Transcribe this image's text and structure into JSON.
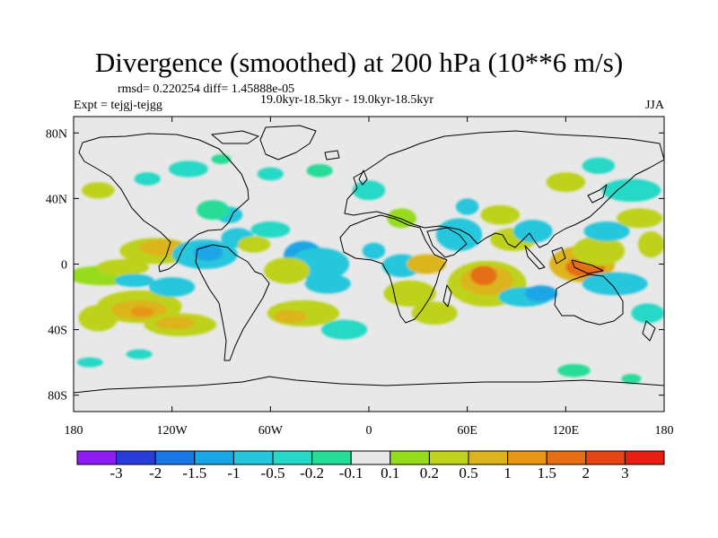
{
  "chart_data": {
    "type": "heatmap",
    "title": "Divergence (smoothed) at 200 hPa (10**6 m/s)",
    "stats": "rmsd= 0.220254  diff= 1.45888e-05",
    "experiment": "Expt = tejgj-tejgg",
    "period": "19.0kyr-18.5kyr - 19.0kyr-18.5kyr",
    "season": "JJA",
    "x_range": [
      -180,
      180
    ],
    "y_range": [
      -90,
      90
    ],
    "x_ticks": [
      {
        "value": -180,
        "label": "180"
      },
      {
        "value": -120,
        "label": "120W"
      },
      {
        "value": -60,
        "label": "60W"
      },
      {
        "value": 0,
        "label": "0"
      },
      {
        "value": 60,
        "label": "60E"
      },
      {
        "value": 120,
        "label": "120E"
      },
      {
        "value": 180,
        "label": "180"
      }
    ],
    "y_ticks": [
      {
        "value": 80,
        "label": "80N"
      },
      {
        "value": 40,
        "label": "40N"
      },
      {
        "value": 0,
        "label": "0"
      },
      {
        "value": -40,
        "label": "40S"
      },
      {
        "value": -80,
        "label": "80S"
      }
    ],
    "colorbar": {
      "colors": [
        "#8c1cf0",
        "#2a3cd8",
        "#1a78e6",
        "#1aa6e6",
        "#26c6dc",
        "#26d8c6",
        "#26dc96",
        "#e8e8e8",
        "#96dc1e",
        "#bed21e",
        "#dcb41e",
        "#e69614",
        "#e66e14",
        "#e64614",
        "#e61e14"
      ],
      "labels": [
        "-3",
        "-2",
        "-1.5",
        "-1",
        "-0.5",
        "-0.2",
        "-0.1",
        "0.1",
        "0.2",
        "0.5",
        "1",
        "1.5",
        "2",
        "3"
      ]
    },
    "features": [
      {
        "lon": -165,
        "lat": -33,
        "rx": 12,
        "ry": 8,
        "color": "#bed21e"
      },
      {
        "lon": -140,
        "lat": -26,
        "rx": 26,
        "ry": 10,
        "color": "#bed21e"
      },
      {
        "lon": -140,
        "lat": -28,
        "rx": 17,
        "ry": 6,
        "color": "#dcb41e"
      },
      {
        "lon": -138,
        "lat": -29,
        "rx": 7,
        "ry": 3,
        "color": "#e69614"
      },
      {
        "lon": -115,
        "lat": -37,
        "rx": 22,
        "ry": 7,
        "color": "#bed21e"
      },
      {
        "lon": -118,
        "lat": -36,
        "rx": 12,
        "ry": 4,
        "color": "#dcb41e"
      },
      {
        "lon": -162,
        "lat": -7,
        "rx": 22,
        "ry": 6,
        "color": "#96dc1e"
      },
      {
        "lon": -150,
        "lat": -2,
        "rx": 16,
        "ry": 5,
        "color": "#bed21e"
      },
      {
        "lon": -143,
        "lat": -10,
        "rx": 12,
        "ry": 4,
        "color": "#26c6dc"
      },
      {
        "lon": -120,
        "lat": -14,
        "rx": 14,
        "ry": 6,
        "color": "#26c6dc"
      },
      {
        "lon": -130,
        "lat": 8,
        "rx": 22,
        "ry": 8,
        "color": "#bed21e"
      },
      {
        "lon": -126,
        "lat": 10,
        "rx": 14,
        "ry": 5,
        "color": "#dcb41e"
      },
      {
        "lon": -100,
        "lat": 6,
        "rx": 20,
        "ry": 9,
        "color": "#26c6dc"
      },
      {
        "lon": -98,
        "lat": 7,
        "rx": 9,
        "ry": 5,
        "color": "#1aa6e6"
      },
      {
        "lon": -80,
        "lat": 16,
        "rx": 10,
        "ry": 6,
        "color": "#26c6dc"
      },
      {
        "lon": -70,
        "lat": 12,
        "rx": 10,
        "ry": 5,
        "color": "#bed21e"
      },
      {
        "lon": -85,
        "lat": 30,
        "rx": 8,
        "ry": 5,
        "color": "#26c6dc"
      },
      {
        "lon": -95,
        "lat": 33,
        "rx": 10,
        "ry": 6,
        "color": "#26dc96"
      },
      {
        "lon": -60,
        "lat": 21,
        "rx": 12,
        "ry": 5,
        "color": "#26d8c6"
      },
      {
        "lon": -40,
        "lat": 5,
        "rx": 12,
        "ry": 9,
        "color": "#1aa6e6"
      },
      {
        "lon": -30,
        "lat": 0,
        "rx": 18,
        "ry": 10,
        "color": "#26c6dc"
      },
      {
        "lon": -50,
        "lat": -4,
        "rx": 14,
        "ry": 8,
        "color": "#bed21e"
      },
      {
        "lon": -25,
        "lat": -12,
        "rx": 14,
        "ry": 6,
        "color": "#26c6dc"
      },
      {
        "lon": -40,
        "lat": -30,
        "rx": 22,
        "ry": 8,
        "color": "#bed21e"
      },
      {
        "lon": -48,
        "lat": -32,
        "rx": 10,
        "ry": 4,
        "color": "#dcb41e"
      },
      {
        "lon": -15,
        "lat": -40,
        "rx": 14,
        "ry": 6,
        "color": "#26d8c6"
      },
      {
        "lon": 20,
        "lat": 28,
        "rx": 9,
        "ry": 6,
        "color": "#96dc1e"
      },
      {
        "lon": 3,
        "lat": 8,
        "rx": 7,
        "ry": 5,
        "color": "#26c6dc"
      },
      {
        "lon": 20,
        "lat": -1,
        "rx": 12,
        "ry": 7,
        "color": "#26c6dc"
      },
      {
        "lon": 35,
        "lat": 0,
        "rx": 12,
        "ry": 6,
        "color": "#dcb41e"
      },
      {
        "lon": 25,
        "lat": -18,
        "rx": 16,
        "ry": 8,
        "color": "#bed21e"
      },
      {
        "lon": 40,
        "lat": -30,
        "rx": 14,
        "ry": 7,
        "color": "#bed21e"
      },
      {
        "lon": 55,
        "lat": 18,
        "rx": 14,
        "ry": 10,
        "color": "#26c6dc"
      },
      {
        "lon": 72,
        "lat": -12,
        "rx": 24,
        "ry": 14,
        "color": "#bed21e"
      },
      {
        "lon": 72,
        "lat": -10,
        "rx": 16,
        "ry": 9,
        "color": "#dcb41e"
      },
      {
        "lon": 70,
        "lat": -7,
        "rx": 8,
        "ry": 6,
        "color": "#e66e14"
      },
      {
        "lon": 95,
        "lat": -20,
        "rx": 16,
        "ry": 6,
        "color": "#26c6dc"
      },
      {
        "lon": 105,
        "lat": -18,
        "rx": 10,
        "ry": 5,
        "color": "#1aa6e6"
      },
      {
        "lon": 60,
        "lat": 35,
        "rx": 7,
        "ry": 5,
        "color": "#26c6dc"
      },
      {
        "lon": 80,
        "lat": 30,
        "rx": 12,
        "ry": 6,
        "color": "#bed21e"
      },
      {
        "lon": 88,
        "lat": 15,
        "rx": 14,
        "ry": 7,
        "color": "#bed21e"
      },
      {
        "lon": 100,
        "lat": 20,
        "rx": 12,
        "ry": 7,
        "color": "#26c6dc"
      },
      {
        "lon": 130,
        "lat": 0,
        "rx": 20,
        "ry": 11,
        "color": "#dcb41e"
      },
      {
        "lon": 132,
        "lat": -2,
        "rx": 12,
        "ry": 6,
        "color": "#e66e14"
      },
      {
        "lon": 140,
        "lat": 8,
        "rx": 16,
        "ry": 9,
        "color": "#bed21e"
      },
      {
        "lon": 145,
        "lat": 20,
        "rx": 14,
        "ry": 6,
        "color": "#26c6dc"
      },
      {
        "lon": 150,
        "lat": -12,
        "rx": 20,
        "ry": 7,
        "color": "#26c6dc"
      },
      {
        "lon": 165,
        "lat": 28,
        "rx": 14,
        "ry": 6,
        "color": "#bed21e"
      },
      {
        "lon": 160,
        "lat": 45,
        "rx": 18,
        "ry": 7,
        "color": "#26d8c6"
      },
      {
        "lon": 172,
        "lat": 12,
        "rx": 8,
        "ry": 8,
        "color": "#bed21e"
      },
      {
        "lon": 170,
        "lat": -30,
        "rx": 10,
        "ry": 6,
        "color": "#26d8c6"
      },
      {
        "lon": -165,
        "lat": 45,
        "rx": 10,
        "ry": 5,
        "color": "#bed21e"
      },
      {
        "lon": -110,
        "lat": 58,
        "rx": 12,
        "ry": 5,
        "color": "#26d8c6"
      },
      {
        "lon": -90,
        "lat": 64,
        "rx": 6,
        "ry": 3,
        "color": "#26dc96"
      },
      {
        "lon": -60,
        "lat": 55,
        "rx": 8,
        "ry": 4,
        "color": "#26d8c6"
      },
      {
        "lon": -30,
        "lat": 57,
        "rx": 8,
        "ry": 4,
        "color": "#26dc96"
      },
      {
        "lon": -135,
        "lat": 52,
        "rx": 8,
        "ry": 4,
        "color": "#26d8c6"
      },
      {
        "lon": 0,
        "lat": 45,
        "rx": 10,
        "ry": 6,
        "color": "#26d8c6"
      },
      {
        "lon": 120,
        "lat": 50,
        "rx": 12,
        "ry": 6,
        "color": "#bed21e"
      },
      {
        "lon": 140,
        "lat": 60,
        "rx": 10,
        "ry": 5,
        "color": "#26d8c6"
      },
      {
        "lon": 125,
        "lat": -65,
        "rx": 10,
        "ry": 4,
        "color": "#26dc96"
      },
      {
        "lon": -140,
        "lat": -55,
        "rx": 8,
        "ry": 3,
        "color": "#26d8c6"
      },
      {
        "lon": -170,
        "lat": -60,
        "rx": 8,
        "ry": 3,
        "color": "#26d8c6"
      },
      {
        "lon": 160,
        "lat": -70,
        "rx": 6,
        "ry": 3,
        "color": "#26dc96"
      }
    ]
  }
}
